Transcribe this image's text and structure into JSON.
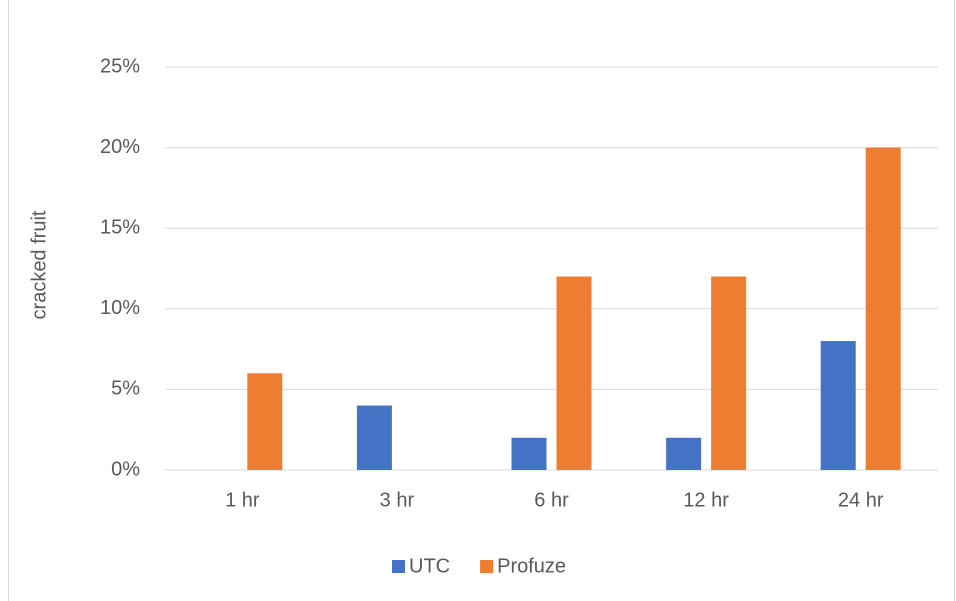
{
  "chart_data": {
    "type": "bar",
    "y_label": "cracked fruit",
    "categories": [
      "1 hr",
      "3 hr",
      "6 hr",
      "12 hr",
      "24 hr"
    ],
    "series": [
      {
        "name": "UTC",
        "color": "#4472c4",
        "values": [
          0,
          4,
          2,
          2,
          8
        ]
      },
      {
        "name": "Profuze",
        "color": "#ed7d31",
        "values": [
          6,
          0,
          12,
          12,
          20
        ]
      }
    ],
    "ylim": [
      0,
      25
    ],
    "yticks": [
      {
        "value": 0,
        "label": "0%"
      },
      {
        "value": 5,
        "label": "5%"
      },
      {
        "value": 10,
        "label": "10%"
      },
      {
        "value": 15,
        "label": "15%"
      },
      {
        "value": 20,
        "label": "20%"
      },
      {
        "value": 25,
        "label": "25%"
      }
    ],
    "grid": true,
    "legend": "bottom"
  }
}
